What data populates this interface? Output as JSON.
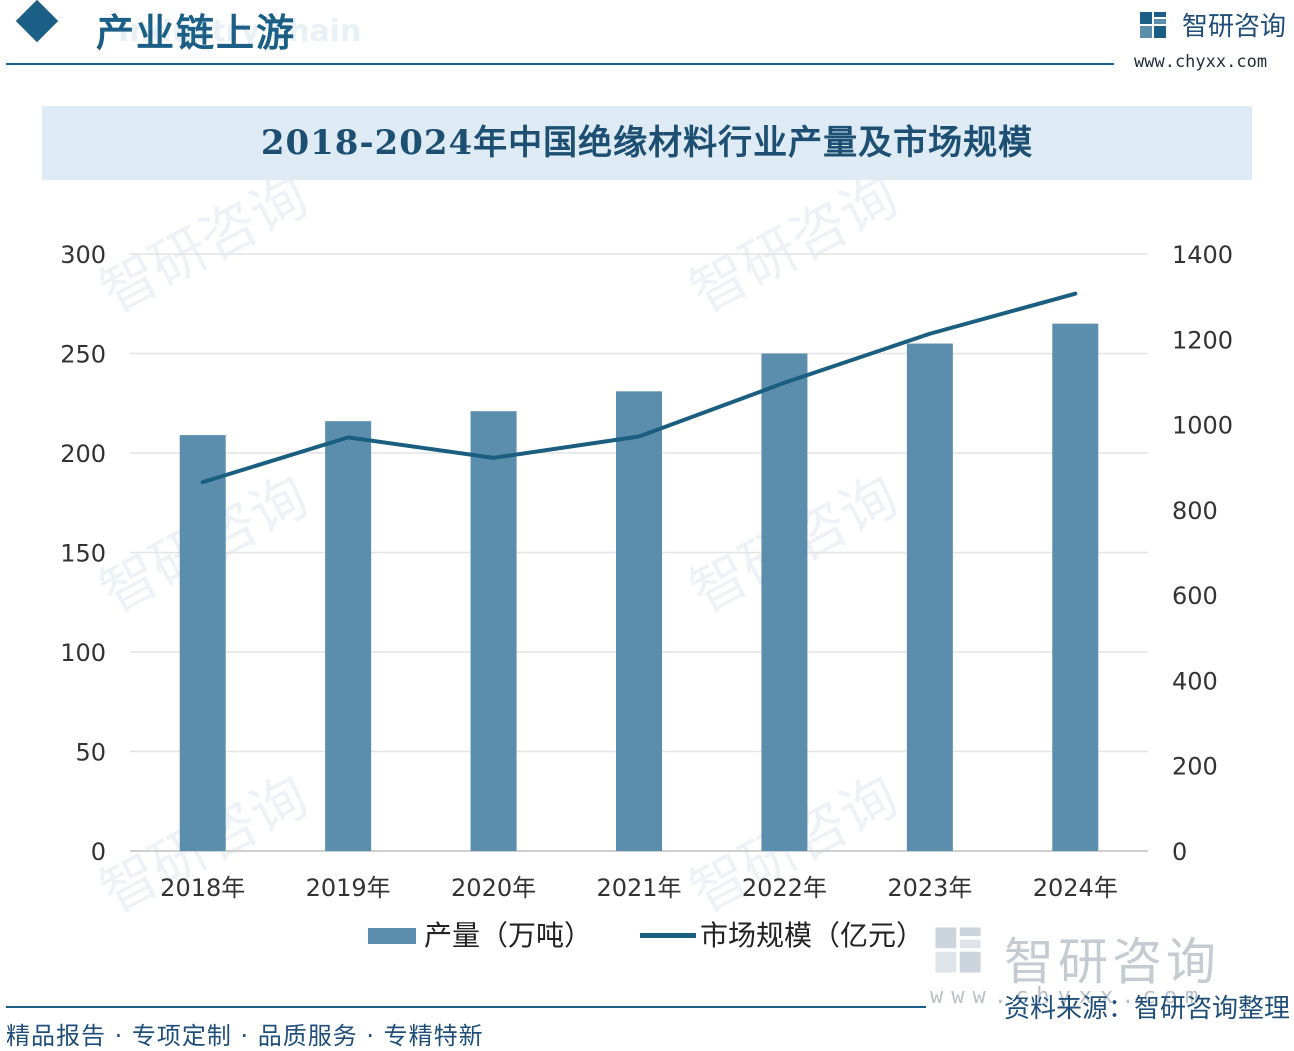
{
  "header": {
    "section_title": "产业链上游",
    "section_subtitle": "Industry chain",
    "brand_name": "智研咨询",
    "brand_url": "www.chyxx.com"
  },
  "chart_data": {
    "type": "bar+line",
    "title": "2018-2024年中国绝缘材料行业产量及市场规模",
    "categories": [
      "2018年",
      "2019年",
      "2020年",
      "2021年",
      "2022年",
      "2023年",
      "2024年"
    ],
    "series": [
      {
        "name": "产量（万吨）",
        "type": "bar",
        "axis": "left",
        "color": "#5b8ead",
        "values": [
          209,
          216,
          221,
          231,
          250,
          255,
          265
        ]
      },
      {
        "name": "市场规模（亿元）",
        "type": "line",
        "axis": "right",
        "color": "#1b5f80",
        "values": [
          865,
          970,
          922,
          972,
          1098,
          1213,
          1307
        ]
      }
    ],
    "left_axis": {
      "min": 0,
      "max": 300,
      "ticks": [
        "0",
        "50",
        "100",
        "150",
        "200",
        "250",
        "300"
      ]
    },
    "right_axis": {
      "min": 0,
      "max": 1400,
      "ticks": [
        "0",
        "200",
        "400",
        "600",
        "800",
        "1000",
        "1200",
        "1400"
      ]
    },
    "grid": true,
    "legend_position": "bottom"
  },
  "legend": {
    "bar_label": "产量（万吨）",
    "line_label": "市场规模（亿元）"
  },
  "watermark": {
    "brand": "智研咨询",
    "url": "www.chyxx.com"
  },
  "footer": {
    "source": "资料来源：智研咨询整理",
    "tagline": "精品报告 · 专项定制 · 品质服务 · 专精特新"
  }
}
